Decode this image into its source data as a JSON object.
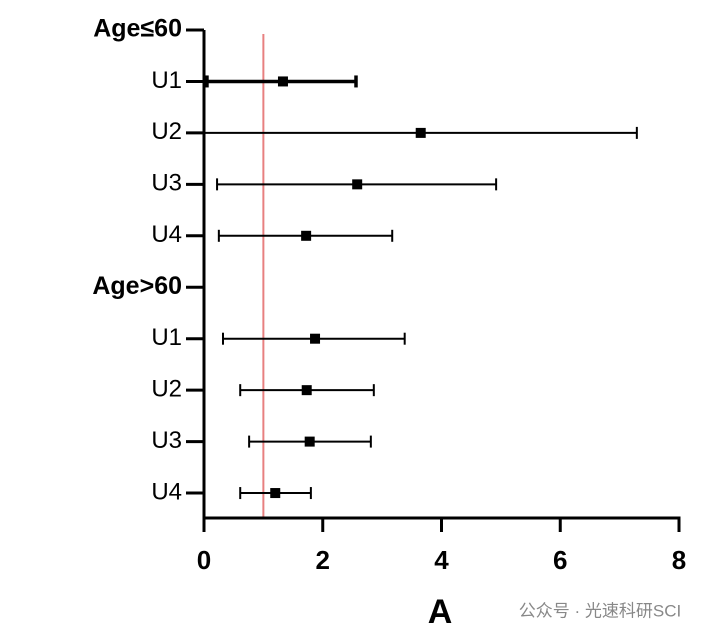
{
  "chart_data": {
    "type": "forest",
    "categories": [
      "Age≤60",
      "U1",
      "U2",
      "U3",
      "U4",
      "Age>60",
      "U1",
      "U2",
      "U3",
      "U4"
    ],
    "series": [
      {
        "color": "#000000",
        "values": [
          null,
          1.33,
          3.65,
          2.58,
          1.72,
          null,
          1.87,
          1.73,
          1.78,
          1.2
        ],
        "lower": [
          null,
          0.05,
          0.0,
          0.22,
          0.25,
          null,
          0.32,
          0.61,
          0.76,
          0.61
        ],
        "upper": [
          null,
          2.56,
          7.29,
          4.92,
          3.17,
          null,
          3.38,
          2.86,
          2.81,
          1.8
        ]
      }
    ],
    "xlim": [
      0,
      8
    ],
    "xticks": [
      0,
      2,
      4,
      6,
      8
    ],
    "reference_line": 1,
    "reference_color": "#e88080",
    "panel_label": "A",
    "watermark": "公众号 · 光速科研SCI"
  }
}
